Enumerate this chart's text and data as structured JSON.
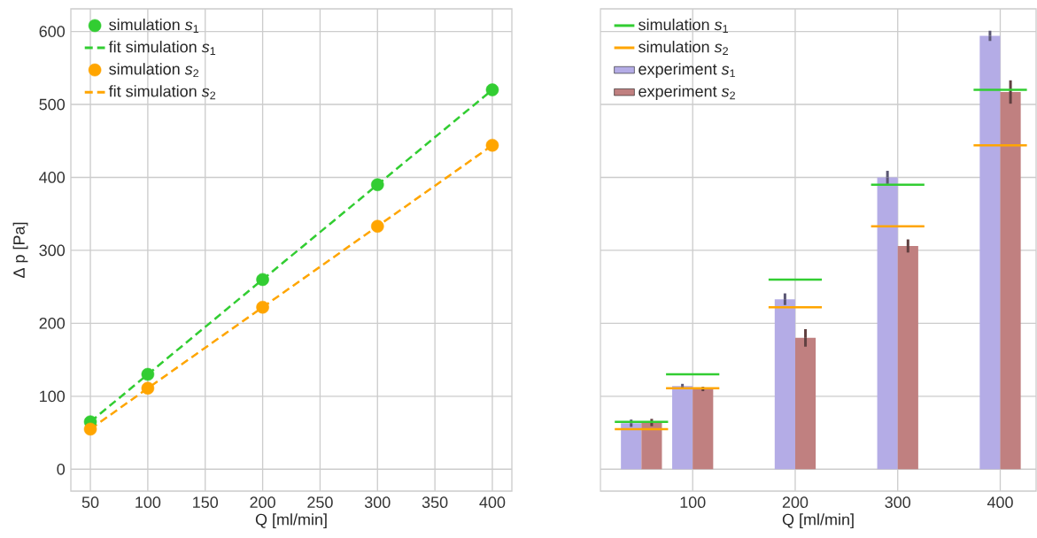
{
  "chart_data": [
    {
      "type": "scatter",
      "xlabel": "Q [ml/min]",
      "ylabel": "Δ p [Pa]",
      "x": [
        50,
        100,
        200,
        300,
        400
      ],
      "xlim": [
        33,
        417
      ],
      "ylim": [
        -30,
        631
      ],
      "xticks": [
        50,
        100,
        150,
        200,
        250,
        300,
        350,
        400
      ],
      "yticks": [
        0,
        100,
        200,
        300,
        400,
        500,
        600
      ],
      "grid": true,
      "legend": "top left",
      "series": [
        {
          "name": "simulation *s*$_{1}$",
          "color": "#32cd32",
          "marker": "circle",
          "values": [
            65,
            130,
            260,
            390,
            520
          ]
        },
        {
          "name": "fit simulation *s*$_{1}$",
          "type": "line",
          "color": "#32cd32",
          "marker": "none",
          "line_style": "dashed",
          "values": [
            65,
            130,
            260,
            390,
            520
          ]
        },
        {
          "name": "simulation *s*$_{2}$",
          "color": "#ffa500",
          "marker": "circle",
          "values": [
            55,
            111,
            222,
            333,
            444
          ]
        },
        {
          "name": "fit simulation *s*$_{2}$",
          "type": "line",
          "color": "#ffa500",
          "marker": "none",
          "line_style": "dashed",
          "values": [
            55,
            111,
            222,
            333,
            444
          ]
        }
      ]
    },
    {
      "type": "bar",
      "xlabel": "Q [ml/min]",
      "x": [
        50,
        100,
        200,
        300,
        400
      ],
      "xlim": [
        10,
        435
      ],
      "ylim": [
        -30,
        631
      ],
      "xticks": [
        100,
        200,
        300,
        400
      ],
      "yticks": [
        0,
        100,
        200,
        300,
        400,
        500,
        600
      ],
      "tick_labels": "x",
      "grid": true,
      "legend": "top left",
      "series": [
        {
          "name": "simulation *s*$_{1}$",
          "type": "line",
          "marker": "none",
          "line_style": "solid",
          "color": "#32cd32",
          "x": [
            24,
            76,
            null,
            74,
            126,
            null,
            174,
            226,
            null,
            274,
            326,
            null,
            374,
            426
          ],
          "values": [
            65,
            65,
            null,
            130,
            130,
            null,
            260,
            260,
            null,
            390,
            390,
            null,
            520,
            520
          ]
        },
        {
          "name": "simulation *s*$_{2}$",
          "type": "line",
          "marker": "none",
          "line_style": "solid",
          "color": "#ffa500",
          "x": [
            24,
            76,
            null,
            74,
            126,
            null,
            174,
            226,
            null,
            274,
            326,
            null,
            374,
            426
          ],
          "values": [
            55,
            55,
            null,
            111,
            111,
            null,
            222,
            222,
            null,
            333,
            333,
            null,
            444,
            444
          ]
        },
        {
          "name": "experiment *s*$_{1}$",
          "color": "#b4ace6",
          "values": [
            63,
            114,
            233,
            400,
            594
          ],
          "errors": [
            5,
            3,
            8,
            9,
            7
          ]
        },
        {
          "name": "experiment *s*$_{2}$",
          "color": "#c08080",
          "values": [
            64,
            110,
            180,
            306,
            517
          ],
          "errors": [
            5,
            3,
            12,
            9,
            16
          ]
        }
      ]
    }
  ]
}
